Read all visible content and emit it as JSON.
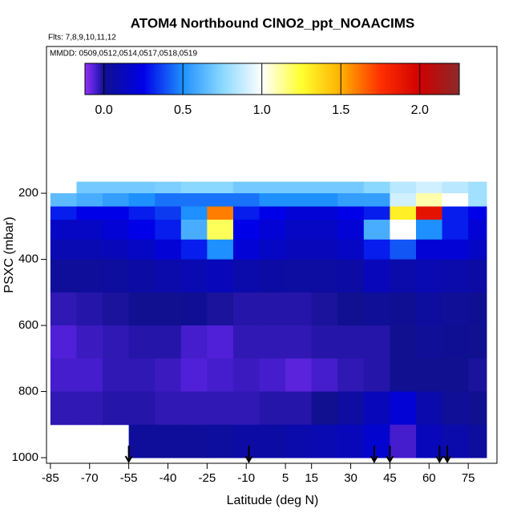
{
  "chart_data": {
    "type": "heatmap",
    "title": "ATOM4 Northbound ClNO2_ppt_NOAACIMS",
    "subtitle": "Flts: 7,8,9,10,11,12",
    "annotation": "MMDD: 0509,0512,0514,0517,0518,0519",
    "x_label": "Latitude (deg N)",
    "y_label": "PSXC (mbar)",
    "xlim": [
      -86.5,
      86
    ],
    "xticks": [
      -85,
      -70,
      -55,
      -40,
      -25,
      -10,
      5,
      15,
      30,
      45,
      60,
      75
    ],
    "ylim": [
      1017,
      -244
    ],
    "yticks": [
      200,
      400,
      600,
      800,
      1000
    ],
    "x_edges": [
      -85,
      -75,
      -65,
      -55,
      -45,
      -35,
      -25,
      -15,
      -5,
      5,
      15,
      25,
      35,
      45,
      55,
      65,
      75,
      82
    ],
    "y_edges": [
      165,
      200,
      240,
      280,
      340,
      400,
      500,
      600,
      700,
      800,
      900,
      1000
    ],
    "z": [
      [
        null,
        0.7,
        0.7,
        0.7,
        0.72,
        0.75,
        0.75,
        0.7,
        0.7,
        0.7,
        0.7,
        0.7,
        0.75,
        0.85,
        0.9,
        0.85,
        0.8
      ],
      [
        0.65,
        0.6,
        0.55,
        0.5,
        0.45,
        0.45,
        0.45,
        0.45,
        0.5,
        0.5,
        0.5,
        0.55,
        0.55,
        0.9,
        1.1,
        1.0,
        0.8
      ],
      [
        0.3,
        0.25,
        0.25,
        0.3,
        0.35,
        0.5,
        1.6,
        0.3,
        0.25,
        0.2,
        0.2,
        0.25,
        0.3,
        1.3,
        1.9,
        0.3,
        0.25
      ],
      [
        0.15,
        0.15,
        0.2,
        0.25,
        0.3,
        0.6,
        1.2,
        0.25,
        0.2,
        0.15,
        0.15,
        0.2,
        0.6,
        1.0,
        0.5,
        0.3,
        0.2
      ],
      [
        0.1,
        0.1,
        0.12,
        0.15,
        0.2,
        0.3,
        0.5,
        0.2,
        0.15,
        0.12,
        0.12,
        0.15,
        0.3,
        0.4,
        0.2,
        0.2,
        0.15
      ],
      [
        0.03,
        0.03,
        0.04,
        0.06,
        0.08,
        0.1,
        0.12,
        0.08,
        0.06,
        0.05,
        0.05,
        0.06,
        0.12,
        0.08,
        0.1,
        0.08,
        0.06
      ],
      [
        -0.03,
        -0.02,
        -0.01,
        0.0,
        0.0,
        0.01,
        -0.01,
        -0.02,
        -0.02,
        -0.02,
        -0.01,
        0.0,
        0.02,
        0.01,
        0.04,
        0.02,
        0.01
      ],
      [
        -0.06,
        -0.04,
        -0.03,
        -0.02,
        -0.02,
        -0.05,
        -0.06,
        -0.03,
        -0.03,
        -0.03,
        -0.02,
        -0.02,
        -0.02,
        0.0,
        0.02,
        0.01,
        0.0
      ],
      [
        -0.05,
        -0.05,
        -0.03,
        -0.03,
        -0.04,
        -0.06,
        -0.05,
        -0.04,
        -0.05,
        -0.07,
        -0.05,
        -0.03,
        -0.02,
        0.0,
        0.0,
        0.0,
        -0.01
      ],
      [
        -0.03,
        -0.03,
        -0.02,
        -0.02,
        -0.03,
        -0.03,
        -0.03,
        -0.03,
        -0.02,
        -0.02,
        0.0,
        0.05,
        0.12,
        0.2,
        0.08,
        0.02,
        0.0
      ],
      [
        null,
        null,
        null,
        0.03,
        0.03,
        0.03,
        0.04,
        0.06,
        0.06,
        0.08,
        0.1,
        0.12,
        0.18,
        -0.05,
        0.12,
        0.08,
        0.04
      ]
    ],
    "colorbar_lim": [
      -0.12,
      2.25
    ],
    "colorbar_ticks": [
      {
        "value": 0,
        "label": "0.0"
      },
      0.5,
      {
        "value": 1,
        "label": "1.0"
      },
      1.5,
      {
        "value": 2,
        "label": "2.0"
      }
    ],
    "colorscale": [
      [
        -0.12,
        "#9030f0"
      ],
      [
        -0.06,
        "#5020d8"
      ],
      [
        0,
        "#101090"
      ],
      [
        0.25,
        "#0000e8"
      ],
      [
        0.5,
        "#1e90ff"
      ],
      [
        0.75,
        "#8ad8ff"
      ],
      [
        1,
        "#ffffff"
      ],
      [
        1.25,
        "#ffff30"
      ],
      [
        1.5,
        "#ffb000"
      ],
      [
        1.75,
        "#ff3000"
      ],
      [
        2,
        "#d00000"
      ],
      [
        2.25,
        "#8b2a2a"
      ]
    ],
    "arrows": [
      -55,
      -9,
      39,
      45,
      64,
      67
    ]
  }
}
